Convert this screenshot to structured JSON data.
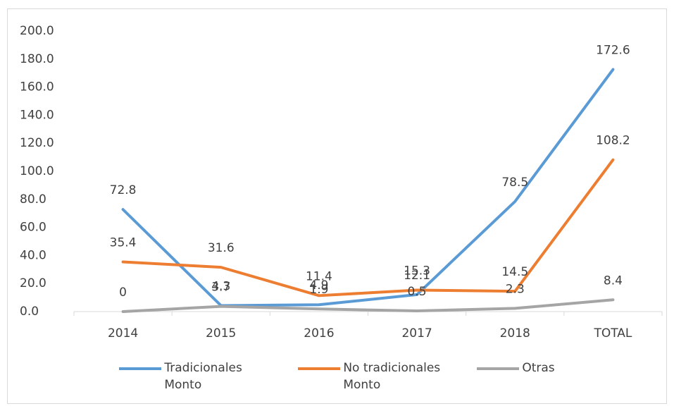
{
  "chart_data": {
    "type": "line",
    "categories": [
      "2014",
      "2015",
      "2016",
      "2017",
      "2018",
      "TOTAL"
    ],
    "series": [
      {
        "name": "Tradicionales Monto",
        "color": "#5b9bd5",
        "values": [
          72.8,
          4.3,
          4.9,
          12.1,
          78.5,
          172.6
        ]
      },
      {
        "name": "No tradicionales Monto",
        "color": "#ed7d31",
        "values": [
          35.4,
          31.6,
          11.4,
          15.3,
          14.5,
          108.2
        ]
      },
      {
        "name": "Otras",
        "color": "#a5a5a5",
        "values": [
          0,
          3.7,
          1.9,
          0.5,
          2.3,
          8.4
        ]
      }
    ],
    "ylim": [
      0,
      200
    ],
    "yticks": [
      {
        "value": 0,
        "label": "0.0"
      },
      {
        "value": 20,
        "label": "20.0"
      },
      {
        "value": 40,
        "label": "40.0"
      },
      {
        "value": 60,
        "label": "60.0"
      },
      {
        "value": 80,
        "label": "80.0"
      },
      {
        "value": 100,
        "label": "100.0"
      },
      {
        "value": 120,
        "label": "120.0"
      },
      {
        "value": 140,
        "label": "140.0"
      },
      {
        "value": 160,
        "label": "160.0"
      },
      {
        "value": 180,
        "label": "180.0"
      },
      {
        "value": 200,
        "label": "200.0"
      }
    ],
    "legend": "bottom",
    "grid": false
  }
}
